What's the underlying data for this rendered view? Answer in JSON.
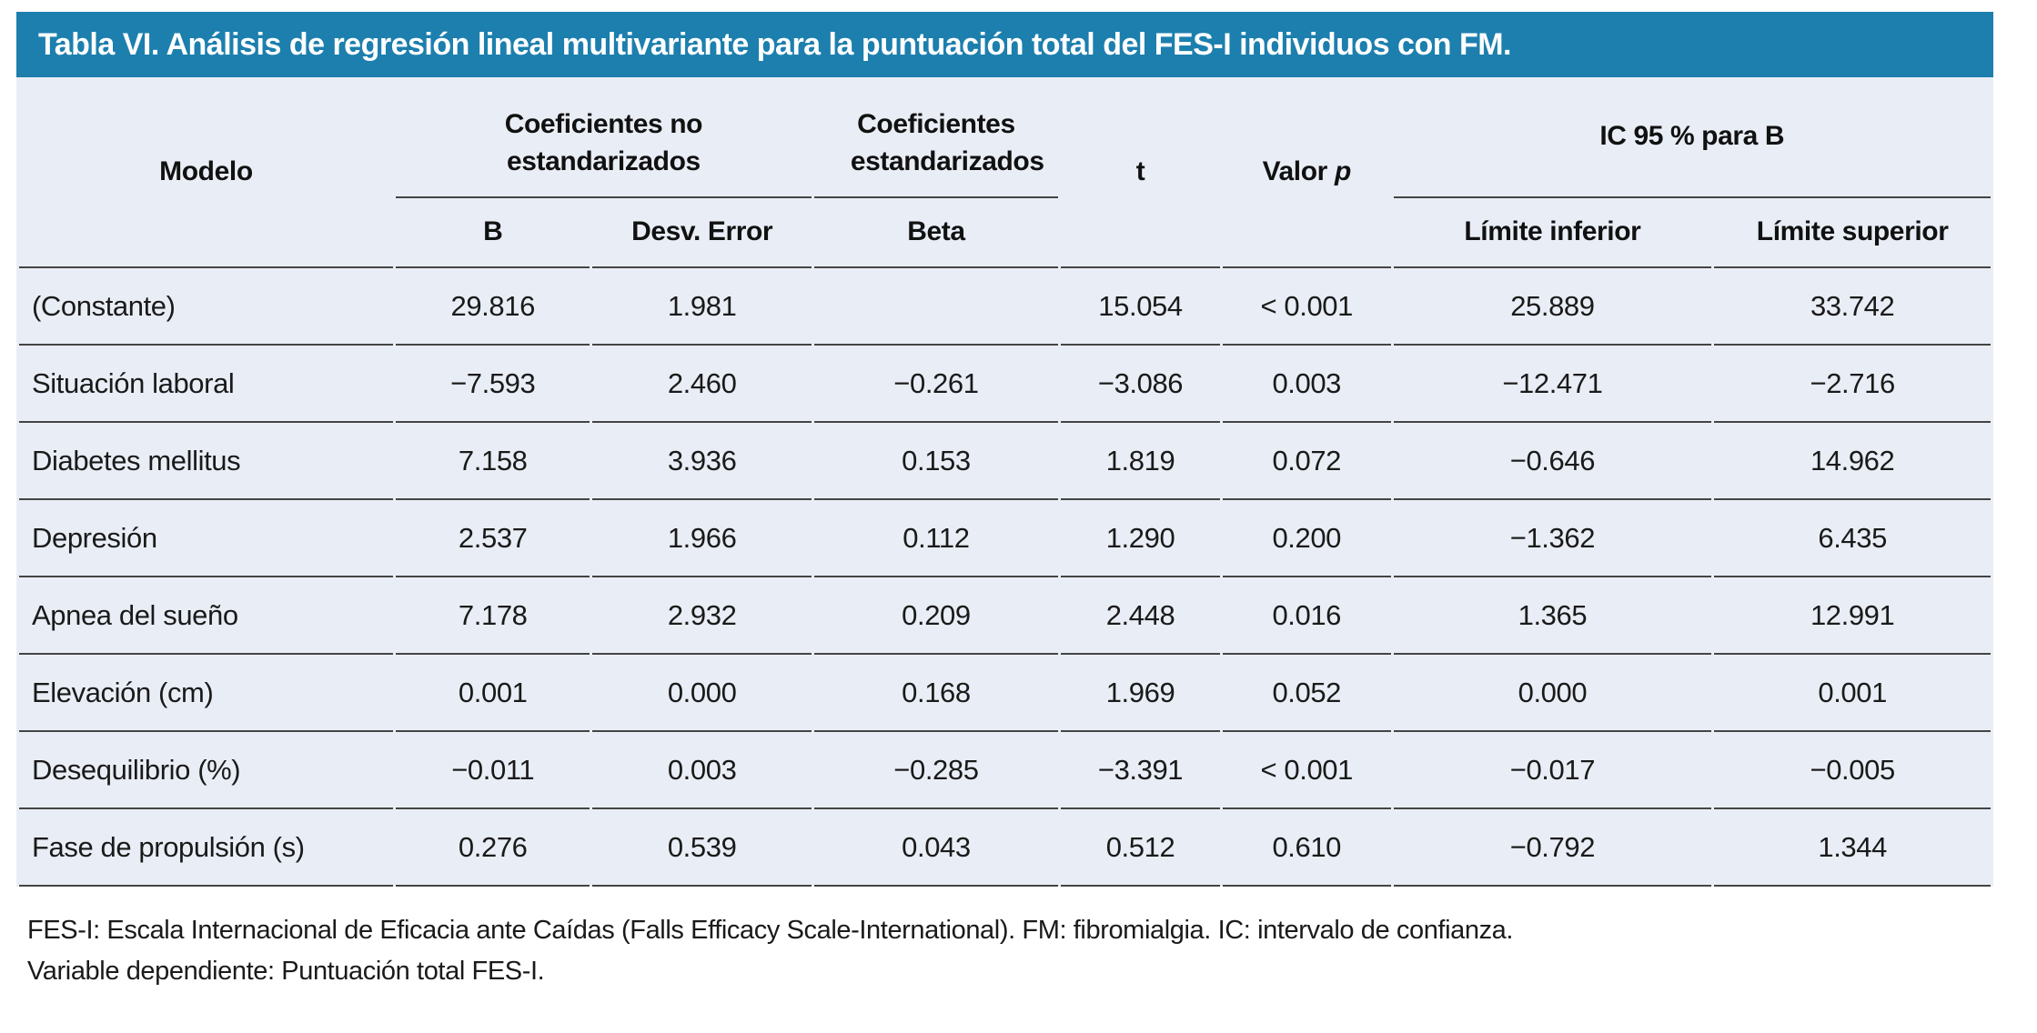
{
  "title": "Tabla VI. Análisis de regresión lineal multivariante para la puntuación total del FES-I individuos con FM.",
  "colors": {
    "title_bar_bg": "#1c7fae",
    "title_text": "#ffffff",
    "table_bg": "#e9eef6",
    "rule_line": "#444444"
  },
  "table": {
    "col_model": "Modelo",
    "group_unstandardized": "Coeficientes no estandarizados",
    "group_standardized": "Coeficientes estandarizados",
    "col_t": "t",
    "col_p_prefix": "Valor",
    "col_p_symbol": "p",
    "group_ci": "IC 95 % para B",
    "sub_b": "B",
    "sub_std_error": "Desv. Error",
    "sub_beta": "Beta",
    "sub_lower": "Límite inferior",
    "sub_upper": "Límite superior",
    "rows": [
      {
        "model": "(Constante)",
        "b": "29.816",
        "se": "1.981",
        "beta": "",
        "t": "15.054",
        "p": "< 0.001",
        "lower": "25.889",
        "upper": "33.742"
      },
      {
        "model": "Situación laboral",
        "b": "−7.593",
        "se": "2.460",
        "beta": "−0.261",
        "t": "−3.086",
        "p": "0.003",
        "lower": "−12.471",
        "upper": "−2.716"
      },
      {
        "model": "Diabetes mellitus",
        "b": "7.158",
        "se": "3.936",
        "beta": "0.153",
        "t": "1.819",
        "p": "0.072",
        "lower": "−0.646",
        "upper": "14.962"
      },
      {
        "model": "Depresión",
        "b": "2.537",
        "se": "1.966",
        "beta": "0.112",
        "t": "1.290",
        "p": "0.200",
        "lower": "−1.362",
        "upper": "6.435"
      },
      {
        "model": "Apnea del sueño",
        "b": "7.178",
        "se": "2.932",
        "beta": "0.209",
        "t": "2.448",
        "p": "0.016",
        "lower": "1.365",
        "upper": "12.991"
      },
      {
        "model": "Elevación (cm)",
        "b": "0.001",
        "se": "0.000",
        "beta": "0.168",
        "t": "1.969",
        "p": "0.052",
        "lower": "0.000",
        "upper": "0.001"
      },
      {
        "model": "Desequilibrio (%)",
        "b": "−0.011",
        "se": "0.003",
        "beta": "−0.285",
        "t": "−3.391",
        "p": "< 0.001",
        "lower": "−0.017",
        "upper": "−0.005"
      },
      {
        "model": "Fase de propulsión (s)",
        "b": "0.276",
        "se": "0.539",
        "beta": "0.043",
        "t": "0.512",
        "p": "0.610",
        "lower": "−0.792",
        "upper": "1.344"
      }
    ]
  },
  "footnotes": [
    "FES-I: Escala Internacional de Eficacia ante Caídas (Falls Efficacy Scale-International). FM: fibromialgia. IC: intervalo de confianza.",
    "Variable dependiente: Puntuación total FES-I."
  ]
}
